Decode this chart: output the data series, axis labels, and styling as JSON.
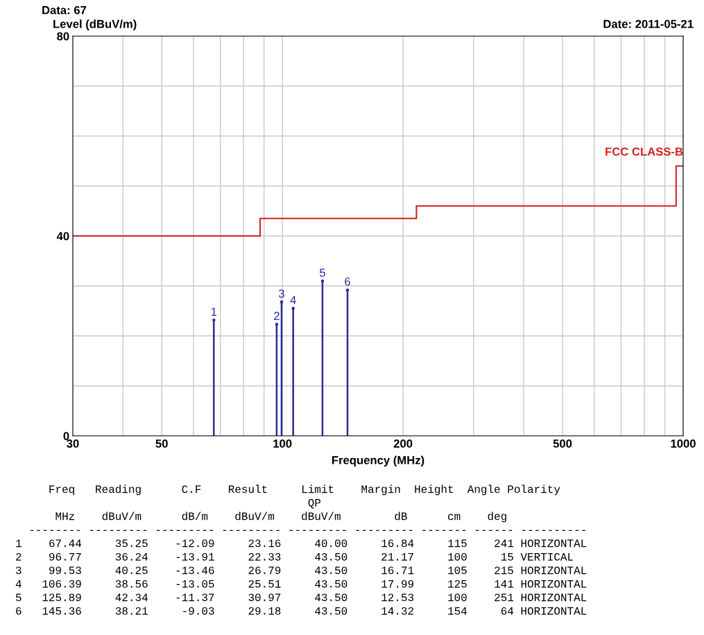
{
  "chart_data": {
    "type": "lollipop",
    "title": "Data: 67",
    "subtitle": "Date: 2011-05-21",
    "xlabel": "Frequency (MHz)",
    "ylabel": "Level (dBuV/m)",
    "log": "x",
    "grid": true,
    "legend": false,
    "xlim": [
      30,
      1000
    ],
    "ylim": [
      0,
      80
    ],
    "xticks": [
      30,
      {
        "value": 40,
        "label": null
      },
      50,
      {
        "value": 60,
        "label": null
      },
      {
        "value": 70,
        "label": null
      },
      {
        "value": 80,
        "label": null
      },
      {
        "value": 90,
        "label": null
      },
      100,
      200,
      {
        "value": 300,
        "label": null
      },
      {
        "value": 400,
        "label": null
      },
      500,
      {
        "value": 600,
        "label": null
      },
      {
        "value": 700,
        "label": null
      },
      {
        "value": 800,
        "label": null
      },
      {
        "value": 900,
        "label": null
      },
      1000
    ],
    "yticks": [
      0,
      {
        "value": 10,
        "label": null
      },
      {
        "value": 20,
        "label": null
      },
      {
        "value": 30,
        "label": null
      },
      40,
      {
        "value": 50,
        "label": null
      },
      {
        "value": 60,
        "label": null
      },
      {
        "value": 70,
        "label": null
      },
      80
    ],
    "series": [
      {
        "type": "step",
        "name": "FCC CLASS-B",
        "color": "#d42020",
        "x": [
          30,
          88,
          216,
          960,
          1000
        ],
        "values": [
          40,
          43.5,
          46,
          54,
          54
        ]
      },
      {
        "color": "#2a2a9e",
        "x": [
          67.44,
          96.77,
          99.53,
          106.39,
          125.89,
          145.36
        ],
        "values": [
          23.16,
          22.33,
          26.79,
          25.51,
          30.97,
          29.18
        ]
      }
    ],
    "annotations": [
      {
        "text": "1",
        "x": 67.44,
        "y": 23.16
      },
      {
        "text": "2",
        "x": 96.77,
        "y": 22.33
      },
      {
        "text": "3",
        "x": 99.53,
        "y": 26.79
      },
      {
        "text": "4",
        "x": 106.39,
        "y": 25.51
      },
      {
        "text": "5",
        "x": 125.89,
        "y": 30.97
      },
      {
        "text": "6",
        "x": 145.36,
        "y": 29.18
      },
      "     Freq   Reading      C.F    Result     Limit    Margin  Height  Angle Polarity",
      "                                            QP",
      "      MHz    dBuV/m      dB/m    dBuV/m    dBuV/m        dB      cm    deg",
      "  -------- --------- --------- --------- --------- --------- ------- ------ ----------",
      "1    67.44     35.25    -12.09     23.16     40.00     16.84     115    241 HORIZONTAL",
      "2    96.77     36.24    -13.91     22.33     43.50     21.17     100     15 VERTICAL",
      "3    99.53     40.25    -13.46     26.79     43.50     16.71     105    215 HORIZONTAL",
      "4   106.39     38.56    -13.05     25.51     43.50     17.99     125    141 HORIZONTAL",
      "5   125.89     42.34    -11.37     30.97     43.50     12.53     100    251 HORIZONTAL",
      "6   145.36     38.21     -9.03     29.18     43.50     14.32     154     64 HORIZONTAL"
    ]
  }
}
